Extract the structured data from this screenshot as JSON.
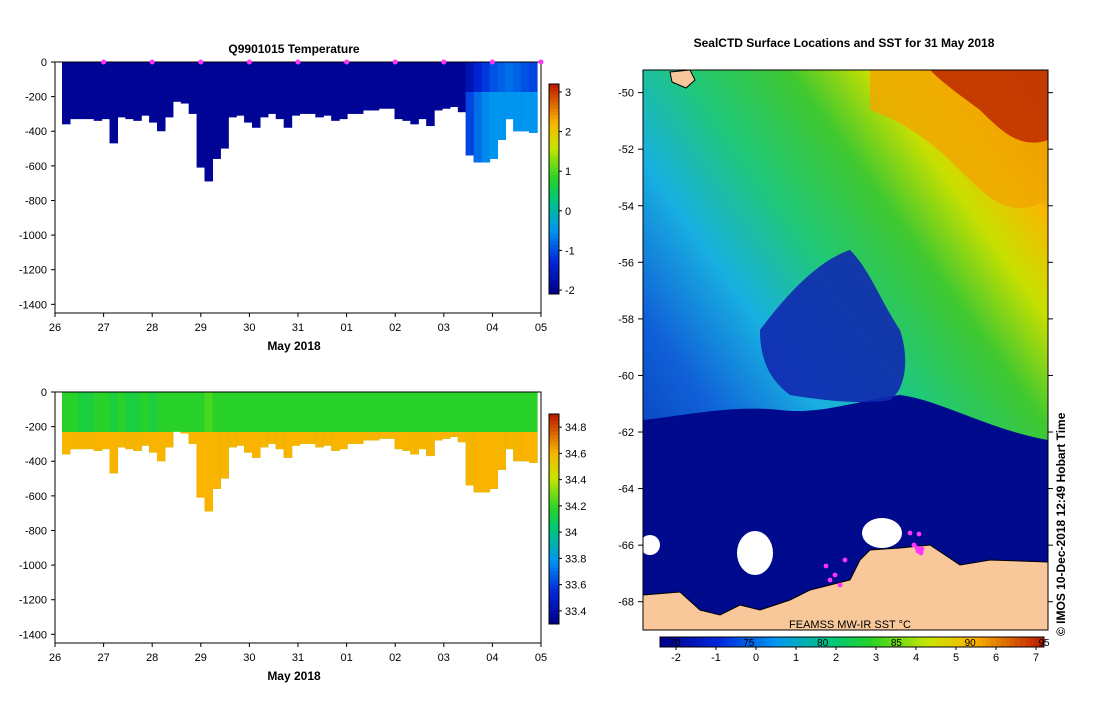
{
  "chart_data": [
    {
      "type": "heatmap",
      "title": "Q9901015  Temperature",
      "xlabel": "May 2018",
      "x_ticks": [
        "26",
        "27",
        "28",
        "29",
        "30",
        "31",
        "01",
        "02",
        "03",
        "04",
        "05"
      ],
      "y_ticks": [
        "0",
        "-200",
        "-400",
        "-600",
        "-800",
        "-1000",
        "-1200",
        "-1400"
      ],
      "ylim": [
        -1450,
        0
      ],
      "colorbar": {
        "ticks": [
          "3",
          "2",
          "1",
          "0",
          "-1",
          "-2"
        ],
        "range": [
          -2.1,
          3.2
        ]
      },
      "profiles": {
        "depth": [
          360,
          330,
          330,
          330,
          340,
          330,
          470,
          320,
          330,
          340,
          310,
          350,
          400,
          320,
          230,
          240,
          300,
          610,
          690,
          560,
          500,
          320,
          310,
          350,
          380,
          320,
          300,
          330,
          380,
          310,
          300,
          300,
          320,
          310,
          340,
          330,
          300,
          300,
          280,
          280,
          270,
          270,
          330,
          340,
          360,
          330,
          370,
          280,
          270,
          260,
          290,
          540,
          580,
          580,
          560,
          450,
          330,
          400,
          400,
          410
        ],
        "surface_temp": [
          -2,
          -2,
          -2,
          -2,
          -2,
          -2,
          -2,
          -2,
          -2,
          -2,
          -2,
          -2,
          -2,
          -2,
          -2,
          -2,
          -2,
          -2,
          -2,
          -2,
          -2,
          -2,
          -2,
          -2,
          -2,
          -2,
          -2,
          -2,
          -2,
          -2,
          -2,
          -2,
          -2,
          -2,
          -2,
          -2,
          -2,
          -2,
          -2,
          -2,
          -2,
          -2,
          -2,
          -2,
          -2,
          -2,
          -2,
          -2,
          -2,
          -2,
          -2,
          -1.7,
          -1.4,
          -1.2,
          -1.0,
          -0.9,
          -0.8,
          -0.9,
          -1.0,
          -1.1
        ]
      }
    },
    {
      "type": "heatmap",
      "title": "",
      "xlabel": "May 2018",
      "x_ticks": [
        "26",
        "27",
        "28",
        "29",
        "30",
        "31",
        "01",
        "02",
        "03",
        "04",
        "05"
      ],
      "y_ticks": [
        "0",
        "-200",
        "-400",
        "-600",
        "-800",
        "-1000",
        "-1200",
        "-1400"
      ],
      "ylim": [
        -1450,
        0
      ],
      "colorbar": {
        "ticks": [
          "34.8",
          "34.6",
          "34.4",
          "34.2",
          "34",
          "33.8",
          "33.6",
          "33.4"
        ],
        "range": [
          33.3,
          34.9
        ]
      },
      "profiles": {
        "depth": [
          360,
          330,
          330,
          330,
          340,
          330,
          470,
          320,
          330,
          340,
          310,
          350,
          400,
          320,
          230,
          240,
          300,
          610,
          690,
          560,
          500,
          320,
          310,
          350,
          380,
          320,
          300,
          330,
          380,
          310,
          300,
          300,
          320,
          310,
          340,
          330,
          300,
          300,
          280,
          280,
          270,
          270,
          330,
          340,
          360,
          330,
          370,
          280,
          270,
          260,
          290,
          540,
          580,
          580,
          560,
          450,
          330,
          400,
          400,
          410
        ],
        "surface_salinity": [
          34.1,
          34.1,
          34.05,
          34.05,
          34.1,
          34.1,
          34.05,
          34.1,
          34.05,
          34.05,
          34.1,
          34.05,
          34.1,
          34.1,
          34.1,
          34.1,
          34.1,
          34.1,
          34.15,
          34.1,
          34.1,
          34.1,
          34.1,
          34.1,
          34.1,
          34.1,
          34.1,
          34.1,
          34.1,
          34.1,
          34.1,
          34.1,
          34.1,
          34.1,
          34.1,
          34.1,
          34.1,
          34.1,
          34.1,
          34.1,
          34.1,
          34.1,
          34.1,
          34.1,
          34.1,
          34.1,
          34.1,
          34.1,
          34.1,
          34.1,
          34.1,
          34.1,
          34.1,
          34.1,
          34.1,
          34.1,
          34.1,
          34.1,
          34.1,
          34.1
        ]
      }
    },
    {
      "type": "heatmap",
      "title": "SealCTD Surface Locations and SST for 31 May 2018",
      "y_ticks": [
        "-50",
        "-52",
        "-54",
        "-56",
        "-58",
        "-60",
        "-62",
        "-64",
        "-66",
        "-68"
      ],
      "ylim": [
        -69,
        -49.2
      ],
      "colorbar": {
        "ticks": [
          "-2",
          "-1",
          "0",
          "1",
          "2",
          "3",
          "4",
          "5",
          "6",
          "7"
        ],
        "secondary_ticks": [
          "70",
          "75",
          "80",
          "85",
          "90",
          "95"
        ],
        "range": [
          -2.4,
          7.2
        ]
      },
      "overlay_label": "FEAMSS MW-IR SST °C",
      "side_label": "©  IMOS 10-Dec-2018 12:49 Hobart Time"
    }
  ],
  "colors": {
    "land": "#f8c89a",
    "marker": "#ff33ff",
    "deep_blue": "#000a8c"
  }
}
